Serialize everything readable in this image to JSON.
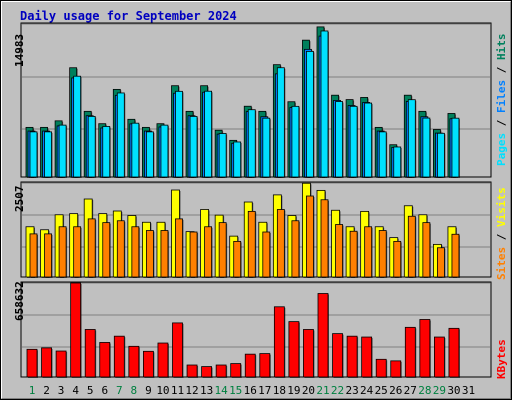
{
  "title": "Daily usage for September 2024",
  "colors": {
    "background": "#c0c0c0",
    "grid": "#808080",
    "title": "#0000c0",
    "hits": "#00805c",
    "files": "#0080ff",
    "pages": "#00e0ff",
    "visits": "#ffff00",
    "sites": "#ff8000",
    "kbytes": "#ff0000",
    "day_label": "#000000",
    "weekend_label": "#008040"
  },
  "legend": {
    "top": {
      "pages": "Pages",
      "files": "Files",
      "hits": "Hits",
      "sep": " / "
    },
    "middle": {
      "sites": "Sites",
      "visits": "Visits",
      "sep": " / "
    },
    "bottom": {
      "kbytes": "KBytes"
    }
  },
  "axis": {
    "top_max_label": "14983",
    "middle_max_label": "2507",
    "bottom_max_label": "658632"
  },
  "chart_data": [
    {
      "type": "bar",
      "name": "hits-files-pages",
      "x": [
        1,
        2,
        3,
        4,
        5,
        6,
        7,
        8,
        9,
        10,
        11,
        12,
        13,
        14,
        15,
        16,
        17,
        18,
        19,
        20,
        21,
        22,
        23,
        24,
        25,
        26,
        27,
        28,
        29,
        30,
        31
      ],
      "ymax": 14983,
      "series": [
        {
          "name": "Hits",
          "values": [
            4860,
            4860,
            5500,
            10700,
            6430,
            5220,
            8580,
            5650,
            4860,
            5220,
            8940,
            6430,
            8940,
            4580,
            3590,
            6930,
            6430,
            11000,
            7370,
            13400,
            14700,
            8010,
            7580,
            7790,
            4860,
            3160,
            8010,
            6430,
            4650,
            6220,
            0
          ]
        },
        {
          "name": "Files",
          "values": [
            4500,
            4500,
            5000,
            9700,
            6000,
            4800,
            8000,
            5200,
            4500,
            4900,
            8200,
            6000,
            8300,
            4200,
            3300,
            6400,
            5900,
            10100,
            6800,
            12500,
            13800,
            7500,
            7000,
            7300,
            4500,
            2900,
            7400,
            5900,
            4300,
            5700,
            0
          ]
        },
        {
          "name": "Pages",
          "values": [
            4420,
            4420,
            5080,
            9870,
            5930,
            4950,
            8230,
            5270,
            4420,
            5080,
            8390,
            5930,
            8400,
            4260,
            3430,
            6590,
            5760,
            10700,
            6920,
            12300,
            14300,
            7390,
            6920,
            7240,
            4420,
            2940,
            7570,
            5770,
            4280,
            5760,
            0
          ]
        }
      ]
    },
    {
      "type": "bar",
      "name": "visits-sites",
      "x": [
        1,
        2,
        3,
        4,
        5,
        6,
        7,
        8,
        9,
        10,
        11,
        12,
        13,
        14,
        15,
        16,
        17,
        18,
        19,
        20,
        21,
        22,
        23,
        24,
        25,
        26,
        27,
        28,
        29,
        30,
        31
      ],
      "ymax": 2507,
      "series": [
        {
          "name": "Visits",
          "values": [
            1340,
            1260,
            1660,
            1690,
            2080,
            1690,
            1760,
            1640,
            1460,
            1460,
            2320,
            1210,
            1800,
            1650,
            1090,
            2000,
            1460,
            2190,
            1640,
            2500,
            2310,
            1780,
            1340,
            1750,
            1340,
            1050,
            1900,
            1660,
            870,
            1340,
            0
          ]
        },
        {
          "name": "Sites",
          "values": [
            1150,
            1150,
            1340,
            1340,
            1550,
            1450,
            1500,
            1340,
            1240,
            1240,
            1550,
            1200,
            1340,
            1450,
            950,
            1750,
            1200,
            1800,
            1500,
            2160,
            2060,
            1400,
            1220,
            1340,
            1240,
            950,
            1620,
            1450,
            780,
            1140,
            0
          ]
        }
      ]
    },
    {
      "type": "bar",
      "name": "kbytes",
      "x": [
        1,
        2,
        3,
        4,
        5,
        6,
        7,
        8,
        9,
        10,
        11,
        12,
        13,
        14,
        15,
        16,
        17,
        18,
        19,
        20,
        21,
        22,
        23,
        24,
        25,
        26,
        27,
        28,
        29,
        30,
        31
      ],
      "ymax": 658632,
      "series": [
        {
          "name": "KBytes",
          "values": [
            194000,
            204000,
            182000,
            658632,
            333000,
            242000,
            286000,
            215000,
            180000,
            238000,
            379000,
            84000,
            73000,
            84000,
            94000,
            160000,
            164000,
            492000,
            388000,
            333000,
            585000,
            304000,
            286000,
            280000,
            124000,
            113000,
            348000,
            403000,
            280000,
            341000,
            0
          ]
        }
      ]
    }
  ],
  "x_labels": [
    {
      "text": "1",
      "weekend": true
    },
    {
      "text": "2",
      "weekend": false
    },
    {
      "text": "3",
      "weekend": false
    },
    {
      "text": "4",
      "weekend": false
    },
    {
      "text": "5",
      "weekend": false
    },
    {
      "text": "6",
      "weekend": false
    },
    {
      "text": "7",
      "weekend": true
    },
    {
      "text": "8",
      "weekend": true
    },
    {
      "text": "9",
      "weekend": false
    },
    {
      "text": "10",
      "weekend": false
    },
    {
      "text": "11",
      "weekend": false
    },
    {
      "text": "12",
      "weekend": false
    },
    {
      "text": "13",
      "weekend": false
    },
    {
      "text": "14",
      "weekend": true
    },
    {
      "text": "15",
      "weekend": true
    },
    {
      "text": "16",
      "weekend": false
    },
    {
      "text": "17",
      "weekend": false
    },
    {
      "text": "18",
      "weekend": false
    },
    {
      "text": "19",
      "weekend": false
    },
    {
      "text": "20",
      "weekend": false
    },
    {
      "text": "21",
      "weekend": true
    },
    {
      "text": "22",
      "weekend": true
    },
    {
      "text": "23",
      "weekend": false
    },
    {
      "text": "24",
      "weekend": false
    },
    {
      "text": "25",
      "weekend": false
    },
    {
      "text": "26",
      "weekend": false
    },
    {
      "text": "27",
      "weekend": false
    },
    {
      "text": "28",
      "weekend": true
    },
    {
      "text": "29",
      "weekend": true
    },
    {
      "text": "30",
      "weekend": false
    },
    {
      "text": "31",
      "weekend": false
    }
  ]
}
